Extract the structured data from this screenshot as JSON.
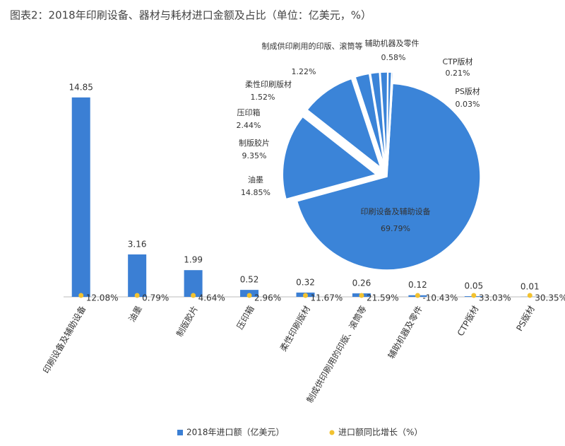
{
  "chart_data": [
    {
      "type": "bar",
      "title": "图表2：2018年印刷设备、器材与耗材进口金额及占比（单位：亿美元，%）",
      "categories": [
        "印刷设备及辅助设备",
        "油墨",
        "制版胶片",
        "压印箱",
        "柔性印刷版材",
        "制成供印刷用的印版、滚筒等",
        "辅助机器及零件",
        "CTP版材",
        "PS版材"
      ],
      "series": [
        {
          "name": "2018年进口额（亿美元）",
          "color": "#3b7fd4",
          "values": [
            14.85,
            3.16,
            1.99,
            0.52,
            0.32,
            0.26,
            0.12,
            0.05,
            0.01
          ]
        },
        {
          "name": "进口额同比增长（%）",
          "color": "#f2c230",
          "type": "scatter",
          "values": [
            12.08,
            0.79,
            4.64,
            2.96,
            11.67,
            21.59,
            -10.43,
            33.03,
            30.35
          ],
          "value_labels": [
            "12.08%",
            "0.79%",
            "4.64%",
            "2.96%",
            "11.67%",
            "21.59%",
            "-10.43%",
            "33.03%",
            "30.35%"
          ]
        }
      ],
      "ylim": [
        0,
        16
      ]
    },
    {
      "type": "pie",
      "color": "#3b84d8",
      "categories": [
        "印刷设备及辅助设备",
        "油墨",
        "制版胶片",
        "压印箱",
        "柔性印刷版材",
        "制成供印刷用的印版、滚筒等",
        "辅助机器及零件",
        "CTP版材",
        "PS版材"
      ],
      "values": [
        69.79,
        14.85,
        9.35,
        2.44,
        1.52,
        1.22,
        0.58,
        0.21,
        0.03
      ],
      "value_labels": [
        "69.79%",
        "14.85%",
        "9.35%",
        "2.44%",
        "1.52%",
        "1.22%",
        "0.58%",
        "0.21%",
        "0.03%"
      ]
    }
  ]
}
